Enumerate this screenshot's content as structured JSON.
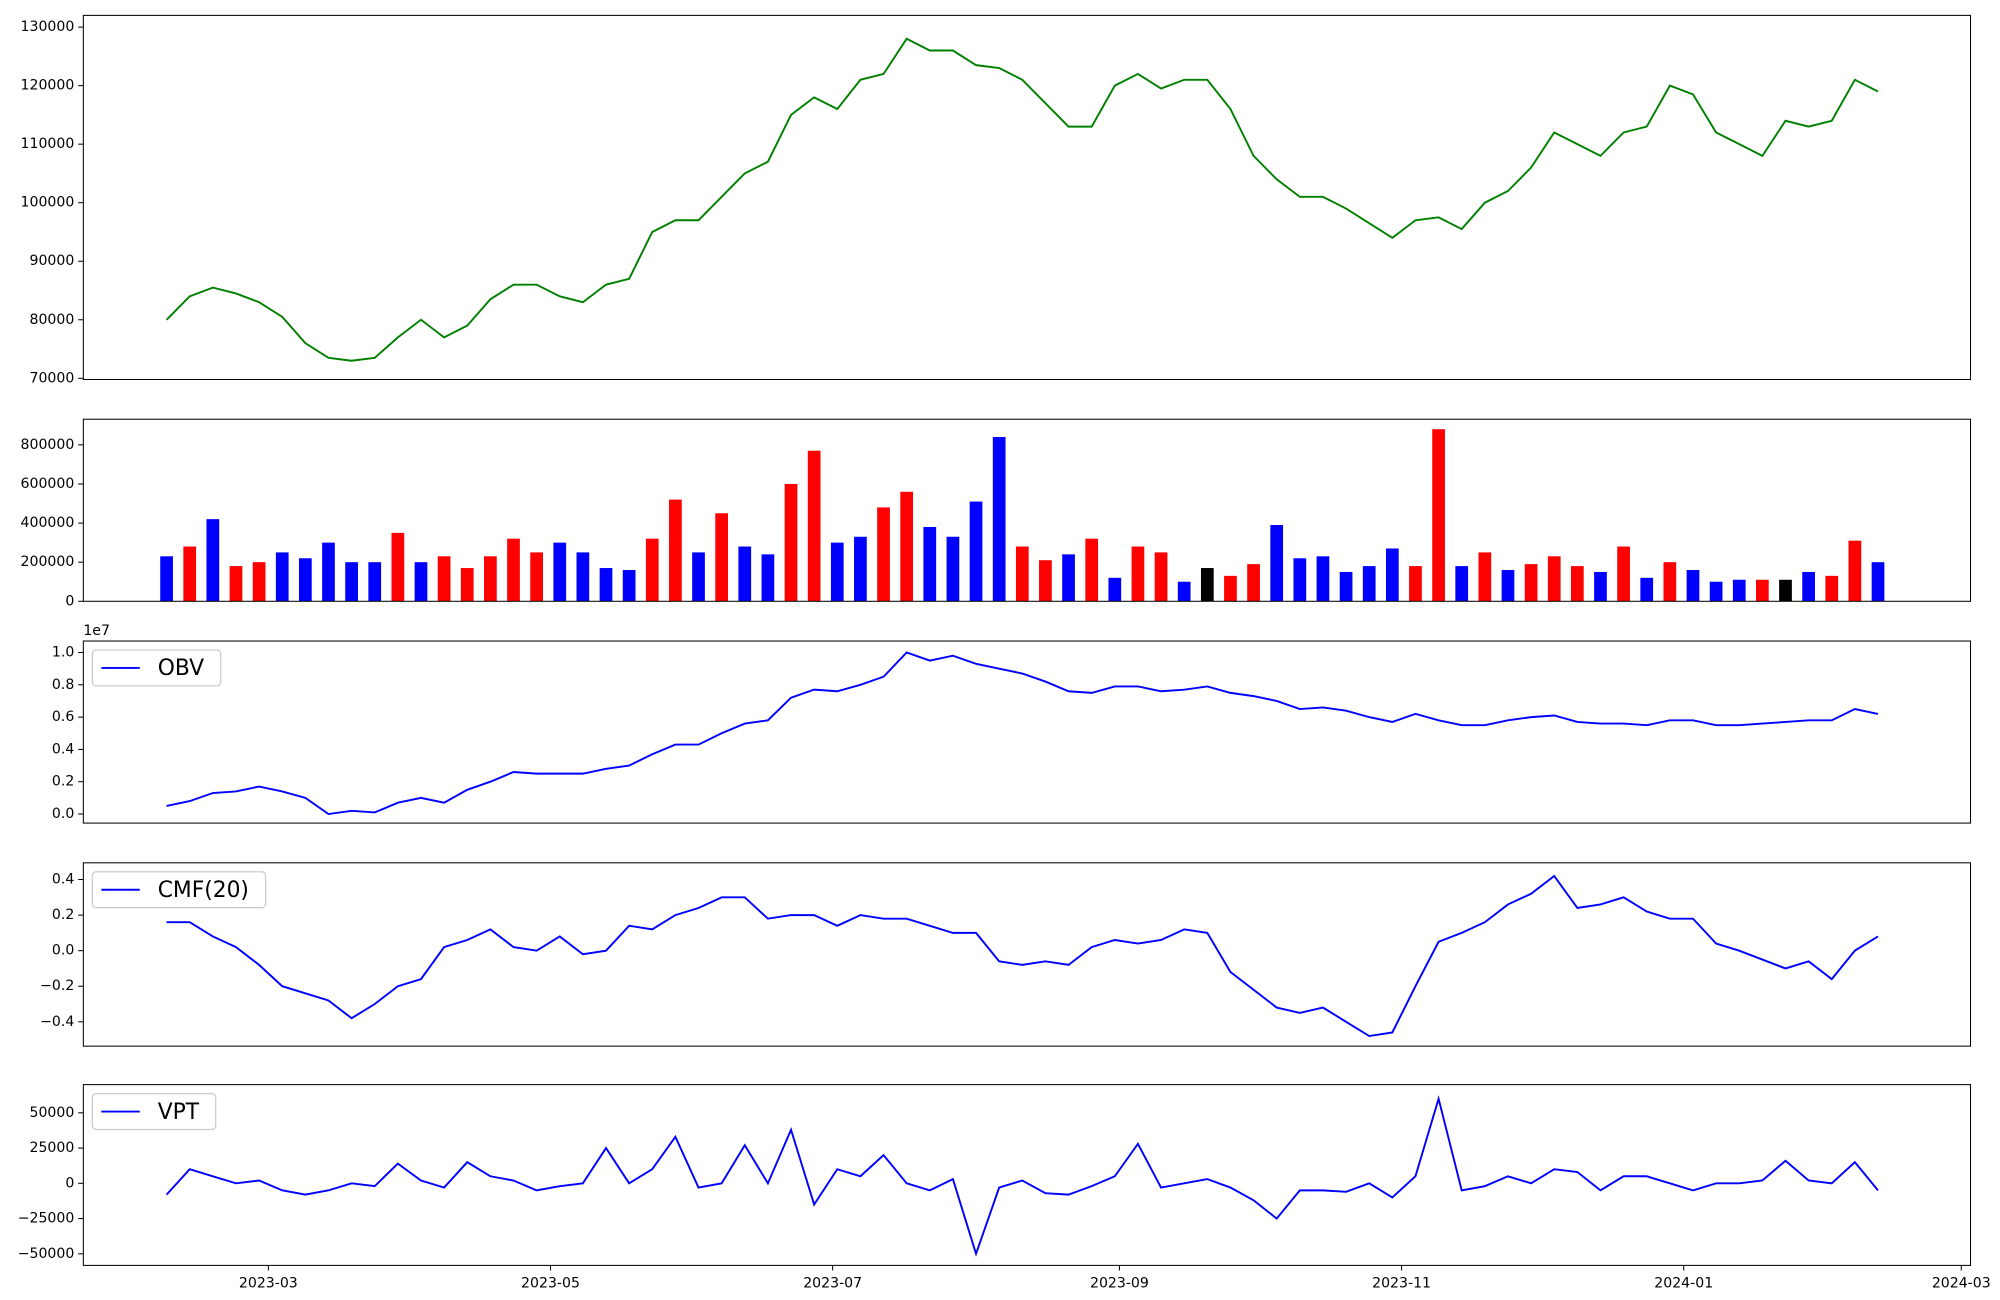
{
  "chart_data": {
    "type": "multi",
    "x": [
      37,
      42,
      47,
      52,
      57,
      62,
      67,
      72,
      77,
      82,
      87,
      92,
      97,
      102,
      107,
      112,
      117,
      122,
      127,
      132,
      137,
      142,
      147,
      152,
      157,
      162,
      167,
      172,
      177,
      182,
      187,
      192,
      197,
      202,
      207,
      212,
      217,
      222,
      227,
      232,
      237,
      242,
      247,
      252,
      257,
      262,
      267,
      272,
      277,
      282,
      287,
      292,
      297,
      302,
      307,
      312,
      317,
      322,
      327,
      332,
      337,
      342,
      347,
      352,
      357,
      362,
      367,
      372,
      377,
      382,
      387,
      392,
      397,
      402,
      407
    ],
    "xlim": [
      19,
      427
    ],
    "xticks": [
      {
        "value": 59,
        "label": "2023-03"
      },
      {
        "value": 120,
        "label": "2023-05"
      },
      {
        "value": 181,
        "label": "2023-07"
      },
      {
        "value": 243,
        "label": "2023-09"
      },
      {
        "value": 304,
        "label": "2023-11"
      },
      {
        "value": 365,
        "label": "2024-01"
      },
      {
        "value": 425,
        "label": "2024-03"
      }
    ],
    "panels": [
      {
        "type": "line",
        "ylim": [
          69800,
          132000
        ],
        "yticks": [
          70000,
          80000,
          90000,
          100000,
          110000,
          120000,
          130000
        ],
        "series": [
          {
            "color": "#008000",
            "values": [
              80000,
              84000,
              85500,
              84500,
              83000,
              80500,
              76000,
              73500,
              73000,
              73500,
              77000,
              80000,
              77000,
              79000,
              83500,
              86000,
              86000,
              84000,
              83000,
              86000,
              87000,
              95000,
              97000,
              97000,
              101000,
              105000,
              107000,
              115000,
              118000,
              116000,
              121000,
              122000,
              128000,
              126000,
              126000,
              123500,
              123000,
              121000,
              117000,
              113000,
              113000,
              120000,
              122000,
              119500,
              121000,
              121000,
              116000,
              108000,
              104000,
              101000,
              101000,
              99000,
              96500,
              94000,
              97000,
              97500,
              95500,
              100000,
              102000,
              106000,
              112000,
              110000,
              108000,
              112000,
              113000,
              120000,
              118500,
              112000,
              110000,
              108000,
              114000,
              113000,
              114000,
              121000,
              119000
            ]
          }
        ]
      },
      {
        "type": "bar",
        "ylim": [
          0,
          931000
        ],
        "yticks": [
          0,
          200000,
          400000,
          600000,
          800000
        ],
        "series": [
          {
            "values": [
              230000,
              280000,
              420000,
              180000,
              200000,
              250000,
              220000,
              300000,
              200000,
              200000,
              350000,
              200000,
              230000,
              170000,
              230000,
              320000,
              250000,
              300000,
              250000,
              170000,
              160000,
              320000,
              520000,
              250000,
              450000,
              280000,
              240000,
              600000,
              770000,
              300000,
              330000,
              480000,
              560000,
              380000,
              330000,
              510000,
              840000,
              280000,
              210000,
              240000,
              320000,
              120000,
              280000,
              250000,
              100000,
              170000,
              130000,
              190000,
              390000,
              220000,
              230000,
              150000,
              180000,
              270000,
              180000,
              880000,
              180000,
              250000,
              160000,
              190000,
              230000,
              180000,
              150000,
              280000,
              120000,
              200000,
              160000,
              100000,
              110000,
              110000,
              110000,
              150000,
              130000,
              310000,
              200000
            ],
            "colors": [
              "#0000ff",
              "#ff0000",
              "#0000ff",
              "#ff0000",
              "#ff0000",
              "#0000ff",
              "#0000ff",
              "#0000ff",
              "#0000ff",
              "#0000ff",
              "#ff0000",
              "#0000ff",
              "#ff0000",
              "#ff0000",
              "#ff0000",
              "#ff0000",
              "#ff0000",
              "#0000ff",
              "#0000ff",
              "#0000ff",
              "#0000ff",
              "#ff0000",
              "#ff0000",
              "#0000ff",
              "#ff0000",
              "#0000ff",
              "#0000ff",
              "#ff0000",
              "#ff0000",
              "#0000ff",
              "#0000ff",
              "#ff0000",
              "#ff0000",
              "#0000ff",
              "#0000ff",
              "#0000ff",
              "#0000ff",
              "#ff0000",
              "#ff0000",
              "#0000ff",
              "#ff0000",
              "#0000ff",
              "#ff0000",
              "#ff0000",
              "#0000ff",
              "#000000",
              "#ff0000",
              "#ff0000",
              "#0000ff",
              "#0000ff",
              "#0000ff",
              "#0000ff",
              "#0000ff",
              "#0000ff",
              "#ff0000",
              "#ff0000",
              "#0000ff",
              "#ff0000",
              "#0000ff",
              "#ff0000",
              "#ff0000",
              "#ff0000",
              "#0000ff",
              "#ff0000",
              "#0000ff",
              "#ff0000",
              "#0000ff",
              "#0000ff",
              "#0000ff",
              "#ff0000",
              "#000000",
              "#0000ff",
              "#ff0000",
              "#ff0000",
              "#0000ff"
            ]
          }
        ]
      },
      {
        "type": "line",
        "ylim": [
          -0.056,
          1.071
        ],
        "offset_label": "1e7",
        "legend": "upper left",
        "yticks": [
          {
            "value": 0,
            "label": "0.0"
          },
          0.2,
          0.4,
          0.6,
          0.8,
          {
            "value": 1,
            "label": "1.0"
          }
        ],
        "series": [
          {
            "name": "OBV",
            "color": "#0000ff",
            "values": [
              0.05,
              0.08,
              0.13,
              0.14,
              0.17,
              0.14,
              0.1,
              0.0,
              0.02,
              0.01,
              0.07,
              0.1,
              0.07,
              0.15,
              0.2,
              0.26,
              0.25,
              0.25,
              0.25,
              0.28,
              0.3,
              0.37,
              0.43,
              0.43,
              0.5,
              0.56,
              0.58,
              0.72,
              0.77,
              0.76,
              0.8,
              0.85,
              1.0,
              0.95,
              0.98,
              0.93,
              0.9,
              0.87,
              0.82,
              0.76,
              0.75,
              0.79,
              0.79,
              0.76,
              0.77,
              0.79,
              0.75,
              0.73,
              0.7,
              0.65,
              0.66,
              0.64,
              0.6,
              0.57,
              0.62,
              0.58,
              0.55,
              0.55,
              0.58,
              0.6,
              0.61,
              0.57,
              0.56,
              0.56,
              0.55,
              0.58,
              0.58,
              0.55,
              0.55,
              0.56,
              0.57,
              0.58,
              0.58,
              0.65,
              0.62
            ]
          }
        ]
      },
      {
        "type": "line",
        "ylim": [
          -0.537,
          0.494
        ],
        "legend": "upper left",
        "yticks": [
          {
            "value": -0.4,
            "label": "−0.4"
          },
          {
            "value": -0.2,
            "label": "−0.2"
          },
          {
            "value": 0,
            "label": "0.0"
          },
          0.2,
          0.4
        ],
        "series": [
          {
            "name": "CMF(20)",
            "color": "#0000ff",
            "values": [
              0.16,
              0.16,
              0.08,
              0.02,
              -0.08,
              -0.2,
              -0.24,
              -0.28,
              -0.38,
              -0.3,
              -0.2,
              -0.16,
              0.02,
              0.06,
              0.12,
              0.02,
              0.0,
              0.08,
              -0.02,
              0.0,
              0.14,
              0.12,
              0.2,
              0.24,
              0.3,
              0.3,
              0.18,
              0.2,
              0.2,
              0.14,
              0.2,
              0.18,
              0.18,
              0.14,
              0.1,
              0.1,
              -0.06,
              -0.08,
              -0.06,
              -0.08,
              0.02,
              0.06,
              0.04,
              0.06,
              0.12,
              0.1,
              -0.12,
              -0.22,
              -0.32,
              -0.35,
              -0.32,
              -0.4,
              -0.48,
              -0.46,
              -0.2,
              0.05,
              0.1,
              0.16,
              0.26,
              0.32,
              0.42,
              0.24,
              0.26,
              0.3,
              0.22,
              0.18,
              0.18,
              0.04,
              0.0,
              -0.05,
              -0.1,
              -0.06,
              -0.16,
              0.0,
              0.08
            ]
          }
        ]
      },
      {
        "type": "line",
        "ylim": [
          -58200,
          70000
        ],
        "legend": "upper left",
        "yticks": [
          {
            "value": -50000,
            "label": "−50000"
          },
          {
            "value": -25000,
            "label": "−25000"
          },
          0,
          25000,
          50000
        ],
        "series": [
          {
            "name": "VPT",
            "color": "#0000ff",
            "values": [
              -8000,
              10000,
              5000,
              0,
              2000,
              -5000,
              -8000,
              -5000,
              0,
              -2000,
              14000,
              2000,
              -3000,
              15000,
              5000,
              2000,
              -5000,
              -2000,
              0,
              25000,
              0,
              10000,
              33000,
              -3000,
              0,
              27000,
              0,
              38000,
              -15000,
              10000,
              5000,
              20000,
              0,
              -5000,
              3000,
              -50000,
              -3000,
              2000,
              -7000,
              -8000,
              -2000,
              5000,
              28000,
              -3000,
              0,
              3000,
              -3000,
              -12000,
              -25000,
              -5000,
              -5000,
              -6000,
              0,
              -10000,
              5000,
              60000,
              -5000,
              -2000,
              5000,
              0,
              10000,
              8000,
              -5000,
              5000,
              5000,
              0,
              -5000,
              0,
              0,
              2000,
              16000,
              2000,
              0,
              15000,
              -5000
            ]
          }
        ]
      }
    ]
  }
}
